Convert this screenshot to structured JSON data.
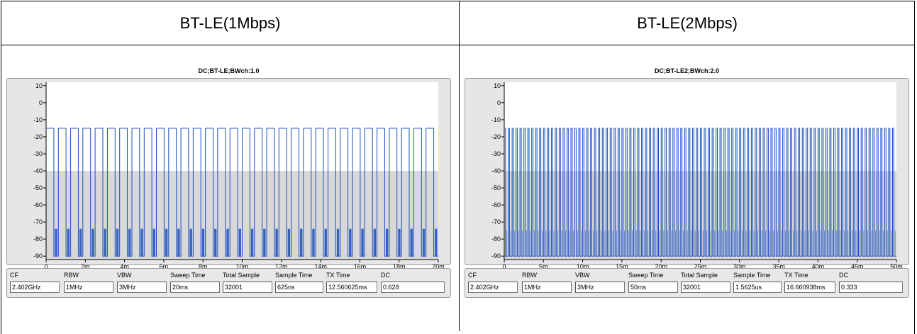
{
  "headers": [
    "BT-LE(1Mbps)",
    "BT-LE(2Mbps)"
  ],
  "chart_data": [
    {
      "type": "line",
      "title": "DC;BT-LE;BWch:1.0",
      "xlabel": "",
      "ylabel": "",
      "xlim": [
        0,
        0.02
      ],
      "ylim": [
        -92,
        12
      ],
      "x_ticks": [
        0,
        0.002,
        0.004,
        0.006,
        0.008,
        0.01,
        0.012,
        0.014,
        0.016,
        0.018,
        0.02
      ],
      "x_tick_labels": [
        "0",
        "2m",
        "4m",
        "6m",
        "8m",
        "10m",
        "12m",
        "14m",
        "16m",
        "18m",
        "20m"
      ],
      "y_ticks": [
        10,
        0,
        -10,
        -20,
        -30,
        -40,
        -50,
        -60,
        -70,
        -80,
        -90
      ],
      "y_tick_labels": [
        "10",
        "0",
        "-10",
        "-20",
        "-30",
        "-40",
        "-50",
        "-60",
        "-70",
        "-80",
        "-90"
      ],
      "grid": false,
      "line_color": "#1a4fc0",
      "series": [
        {
          "pulse_period": 0.000625,
          "duty_cycle": 0.628,
          "pulse_count": 32,
          "on_level": -15,
          "off_level": -90,
          "off_noise_top": -74
        }
      ],
      "info": {
        "labels": [
          "CF",
          "RBW",
          "VBW",
          "Sweep Time",
          "Total Sample",
          "Sample Time",
          "TX Time",
          "DC"
        ],
        "values": [
          "2.402GHz",
          "1MHz",
          "3MHz",
          "20ms",
          "32001",
          "625ns",
          "12.560625ms",
          "0.628"
        ]
      }
    },
    {
      "type": "line",
      "title": "DC;BT-LE2;BWch:2.0",
      "xlabel": "",
      "ylabel": "",
      "xlim": [
        0,
        0.05
      ],
      "ylim": [
        -92,
        12
      ],
      "x_ticks": [
        0,
        0.005,
        0.01,
        0.015,
        0.02,
        0.025,
        0.03,
        0.035,
        0.04,
        0.045,
        0.05
      ],
      "x_tick_labels": [
        "0",
        "5m",
        "10m",
        "15m",
        "20m",
        "25m",
        "30m",
        "35m",
        "40m",
        "45m",
        "50m"
      ],
      "y_ticks": [
        10,
        0,
        -10,
        -20,
        -30,
        -40,
        -50,
        -60,
        -70,
        -80,
        -90
      ],
      "y_tick_labels": [
        "10",
        "0",
        "-10",
        "-20",
        "-30",
        "-40",
        "-50",
        "-60",
        "-70",
        "-80",
        "-90"
      ],
      "grid": false,
      "line_color": "#1a4fc0",
      "series": [
        {
          "pulse_period": 0.0005,
          "duty_cycle": 0.333,
          "pulse_count": 100,
          "on_level": -15,
          "off_level": -90,
          "off_noise_top": -75
        }
      ],
      "info": {
        "labels": [
          "CF",
          "RBW",
          "VBW",
          "Sweep Time",
          "Total Sample",
          "Sample Time",
          "TX Time",
          "DC"
        ],
        "values": [
          "2.402GHz",
          "1MHz",
          "3MHz",
          "50ms",
          "32001",
          "1.5625us",
          "16.660938ms",
          "0.333"
        ]
      }
    }
  ]
}
